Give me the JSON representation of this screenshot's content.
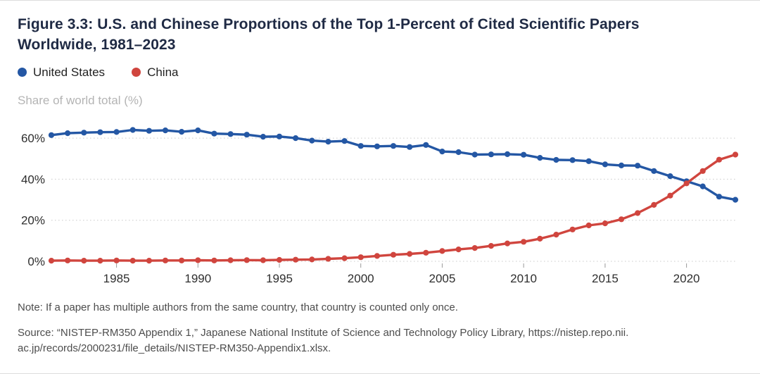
{
  "title": "Figure 3.3: U.S. and Chinese Proportions of the Top 1-Percent of Cited Scientific Papers Worldwide, 1981–2023",
  "note": "Note: If a paper has multiple authors from the same country, that country is counted only once.",
  "source_line1": "Source: “NISTEP-RM350 Appendix 1,” Japanese National Institute of Science and Technology Policy Library, https://nistep.repo.nii.",
  "source_line2": "ac.jp/records/2000231/file_details/NISTEP-RM350-Appendix1.xlsx.",
  "colors": {
    "us_blue": "#2457a4",
    "china_red": "#d0453e",
    "gridline": "#c9c9c9",
    "tick_label": "#2e2e2e",
    "title_navy": "#1f2a44"
  },
  "chart_data": {
    "type": "line",
    "title": "U.S. and Chinese Proportions of the Top 1-Percent of Cited Scientific Papers Worldwide, 1981–2023",
    "ylabel": "Share of world total (%)",
    "xlabel": "",
    "ylim": [
      0,
      70
    ],
    "yticks": [
      0,
      20,
      40,
      60
    ],
    "xticks": [
      1985,
      1990,
      1995,
      2000,
      2005,
      2010,
      2015,
      2020
    ],
    "grid": "horizontal-dotted",
    "legend_position": "top-left",
    "x": [
      1981,
      1982,
      1983,
      1984,
      1985,
      1986,
      1987,
      1988,
      1989,
      1990,
      1991,
      1992,
      1993,
      1994,
      1995,
      1996,
      1997,
      1998,
      1999,
      2000,
      2001,
      2002,
      2003,
      2004,
      2005,
      2006,
      2007,
      2008,
      2009,
      2010,
      2011,
      2012,
      2013,
      2014,
      2015,
      2016,
      2017,
      2018,
      2019,
      2020,
      2021,
      2022,
      2023
    ],
    "series": [
      {
        "name": "United States",
        "color": "#2457a4",
        "values": [
          61.5,
          62.4,
          62.7,
          62.9,
          63.0,
          64.0,
          63.6,
          63.8,
          63.1,
          63.8,
          62.2,
          62.0,
          61.7,
          60.7,
          60.8,
          60.0,
          58.8,
          58.3,
          58.6,
          56.2,
          56.0,
          56.2,
          55.7,
          56.7,
          53.5,
          53.2,
          52.0,
          52.1,
          52.2,
          51.9,
          50.4,
          49.4,
          49.3,
          48.8,
          47.2,
          46.7,
          46.6,
          44.0,
          41.5,
          39.0,
          36.5,
          31.5,
          30.0
        ]
      },
      {
        "name": "China",
        "color": "#d0453e",
        "values": [
          0.3,
          0.4,
          0.3,
          0.3,
          0.4,
          0.3,
          0.3,
          0.4,
          0.4,
          0.5,
          0.4,
          0.5,
          0.6,
          0.5,
          0.7,
          0.8,
          0.9,
          1.2,
          1.5,
          2.0,
          2.6,
          3.2,
          3.6,
          4.2,
          5.0,
          5.8,
          6.5,
          7.5,
          8.7,
          9.5,
          11.0,
          13.0,
          15.5,
          17.5,
          18.5,
          20.5,
          23.5,
          27.5,
          32.0,
          38.0,
          44.0,
          49.5,
          52.0
        ]
      }
    ]
  }
}
